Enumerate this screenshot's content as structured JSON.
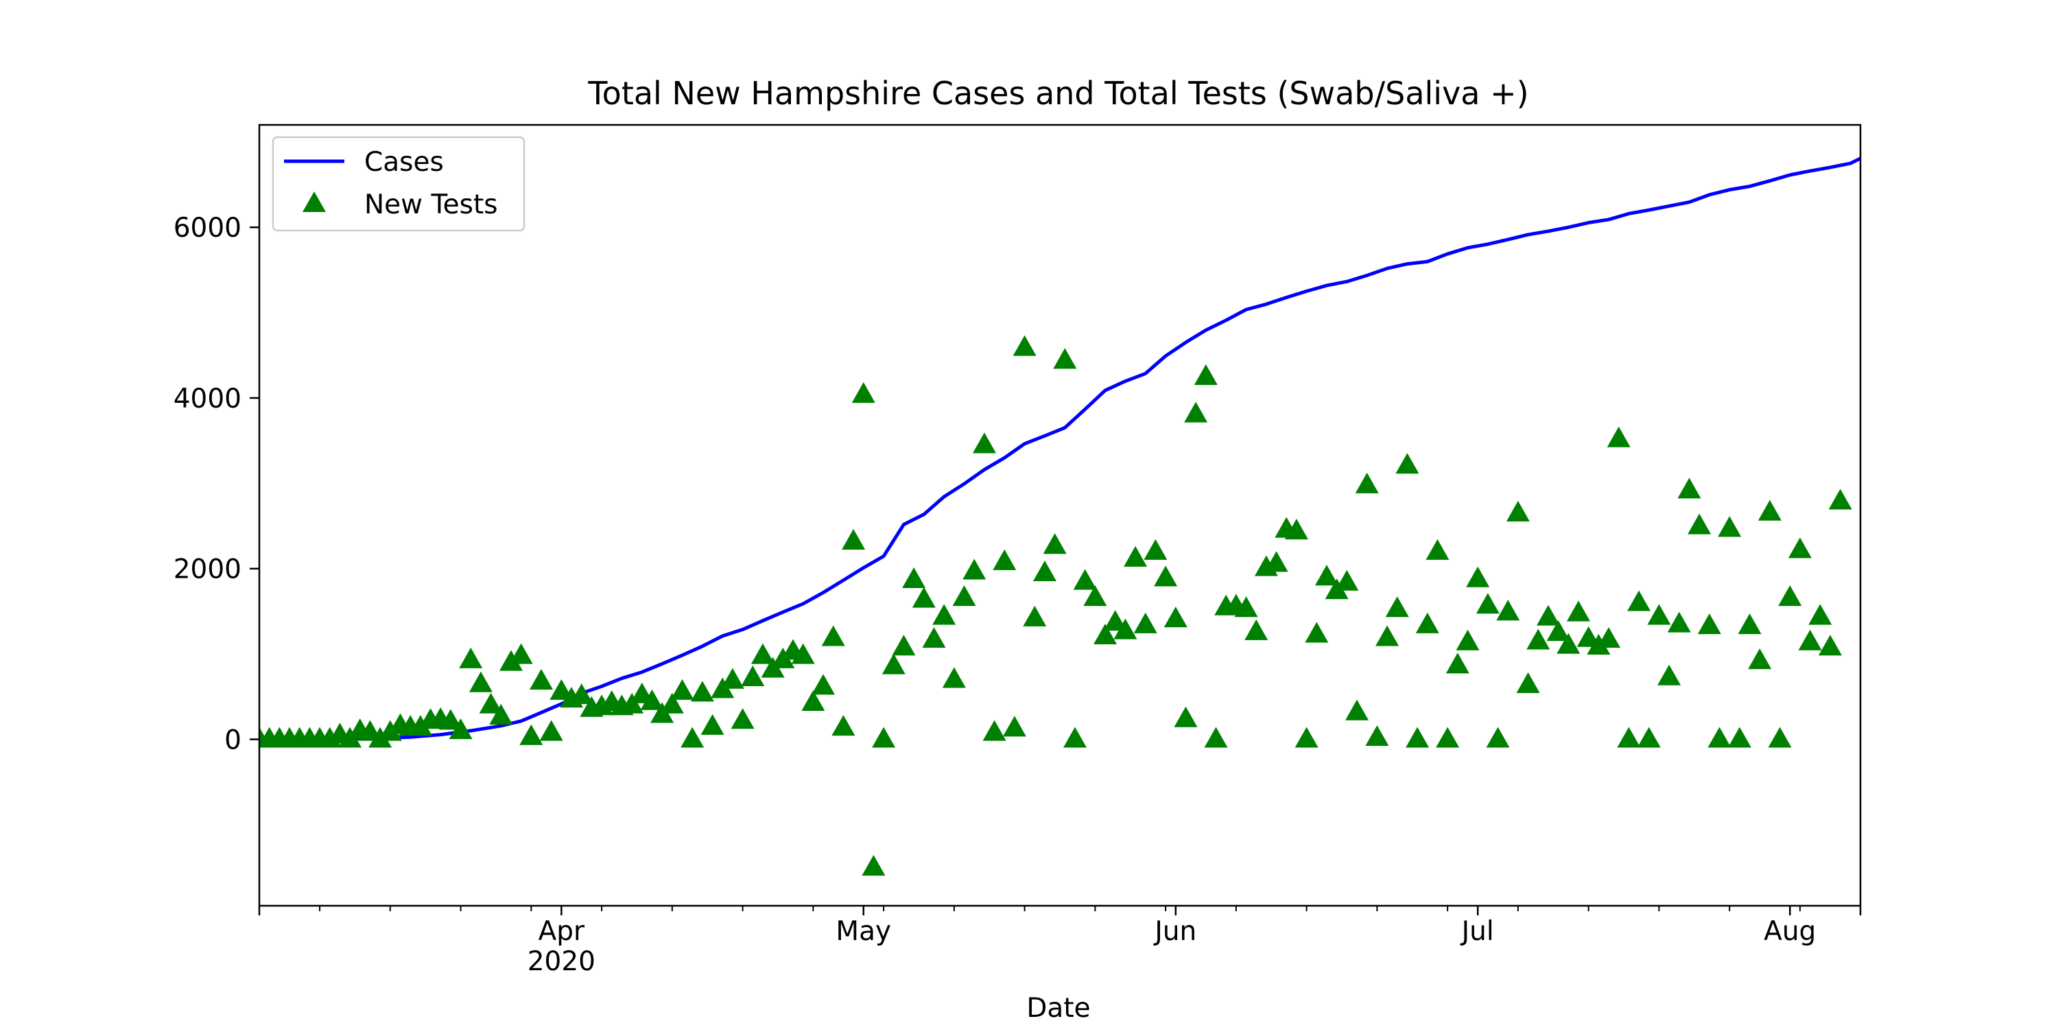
{
  "chart_data": {
    "type": "line",
    "title": "Total New Hampshire Cases and Total Tests (Swab/Saliva +)",
    "xlabel": "Date",
    "ylabel": "",
    "x_axis": {
      "scale": "date",
      "range": [
        "2020-03-02",
        "2020-08-08"
      ],
      "tick_labels": [
        {
          "date": "2020-04-01",
          "label": "Apr",
          "sublabel": "2020"
        },
        {
          "date": "2020-05-01",
          "label": "May",
          "sublabel": ""
        },
        {
          "date": "2020-06-01",
          "label": "Jun",
          "sublabel": ""
        },
        {
          "date": "2020-07-01",
          "label": "Jul",
          "sublabel": ""
        },
        {
          "date": "2020-08-01",
          "label": "Aug",
          "sublabel": ""
        }
      ],
      "minor_tick_dates": [
        "2020-03-08",
        "2020-03-15",
        "2020-03-22",
        "2020-03-29",
        "2020-04-05",
        "2020-04-12",
        "2020-04-19",
        "2020-04-26",
        "2020-05-03",
        "2020-05-10",
        "2020-05-17",
        "2020-05-24",
        "2020-05-31",
        "2020-06-07",
        "2020-06-14",
        "2020-06-21",
        "2020-06-28",
        "2020-07-05",
        "2020-07-12",
        "2020-07-19",
        "2020-07-26",
        "2020-08-02"
      ]
    },
    "y_axis": {
      "range": [
        -1950,
        7200
      ],
      "ticks": [
        0,
        2000,
        4000,
        6000
      ],
      "tick_labels": [
        "0",
        "2000",
        "4000",
        "6000"
      ]
    },
    "grid": false,
    "legend": {
      "position": "upper-left",
      "entries": [
        {
          "label": "Cases",
          "marker": "line",
          "color": "#0000ff"
        },
        {
          "label": "New Tests",
          "marker": "triangle",
          "color": "#008000"
        }
      ]
    },
    "series": [
      {
        "name": "Cases",
        "kind": "line",
        "color": "#0000ff",
        "points": [
          [
            "2020-03-02",
            2
          ],
          [
            "2020-03-05",
            3
          ],
          [
            "2020-03-08",
            6
          ],
          [
            "2020-03-11",
            7
          ],
          [
            "2020-03-14",
            13
          ],
          [
            "2020-03-17",
            26
          ],
          [
            "2020-03-20",
            55
          ],
          [
            "2020-03-23",
            101
          ],
          [
            "2020-03-26",
            158
          ],
          [
            "2020-03-28",
            214
          ],
          [
            "2020-03-30",
            314
          ],
          [
            "2020-04-01",
            415
          ],
          [
            "2020-04-03",
            540
          ],
          [
            "2020-04-05",
            621
          ],
          [
            "2020-04-07",
            715
          ],
          [
            "2020-04-09",
            788
          ],
          [
            "2020-04-11",
            885
          ],
          [
            "2020-04-13",
            985
          ],
          [
            "2020-04-15",
            1091
          ],
          [
            "2020-04-17",
            1211
          ],
          [
            "2020-04-19",
            1287
          ],
          [
            "2020-04-21",
            1390
          ],
          [
            "2020-04-23",
            1491
          ],
          [
            "2020-04-25",
            1588
          ],
          [
            "2020-04-27",
            1720
          ],
          [
            "2020-04-29",
            1864
          ],
          [
            "2020-05-01",
            2010
          ],
          [
            "2020-05-03",
            2146
          ],
          [
            "2020-05-05",
            2518
          ],
          [
            "2020-05-07",
            2636
          ],
          [
            "2020-05-09",
            2843
          ],
          [
            "2020-05-11",
            2994
          ],
          [
            "2020-05-13",
            3160
          ],
          [
            "2020-05-15",
            3299
          ],
          [
            "2020-05-17",
            3464
          ],
          [
            "2020-05-19",
            3556
          ],
          [
            "2020-05-21",
            3652
          ],
          [
            "2020-05-23",
            3868
          ],
          [
            "2020-05-25",
            4089
          ],
          [
            "2020-05-27",
            4197
          ],
          [
            "2020-05-29",
            4286
          ],
          [
            "2020-05-31",
            4492
          ],
          [
            "2020-06-02",
            4651
          ],
          [
            "2020-06-04",
            4795
          ],
          [
            "2020-06-06",
            4910
          ],
          [
            "2020-06-08",
            5036
          ],
          [
            "2020-06-10",
            5099
          ],
          [
            "2020-06-12",
            5178
          ],
          [
            "2020-06-14",
            5251
          ],
          [
            "2020-06-16",
            5318
          ],
          [
            "2020-06-18",
            5364
          ],
          [
            "2020-06-20",
            5436
          ],
          [
            "2020-06-22",
            5518
          ],
          [
            "2020-06-24",
            5571
          ],
          [
            "2020-06-26",
            5598
          ],
          [
            "2020-06-28",
            5688
          ],
          [
            "2020-06-30",
            5760
          ],
          [
            "2020-07-02",
            5802
          ],
          [
            "2020-07-04",
            5857
          ],
          [
            "2020-07-06",
            5914
          ],
          [
            "2020-07-08",
            5954
          ],
          [
            "2020-07-10",
            6000
          ],
          [
            "2020-07-12",
            6054
          ],
          [
            "2020-07-14",
            6091
          ],
          [
            "2020-07-16",
            6160
          ],
          [
            "2020-07-18",
            6202
          ],
          [
            "2020-07-20",
            6249
          ],
          [
            "2020-07-22",
            6295
          ],
          [
            "2020-07-24",
            6381
          ],
          [
            "2020-07-26",
            6440
          ],
          [
            "2020-07-28",
            6480
          ],
          [
            "2020-07-30",
            6544
          ],
          [
            "2020-08-01",
            6613
          ],
          [
            "2020-08-03",
            6660
          ],
          [
            "2020-08-05",
            6702
          ],
          [
            "2020-08-07",
            6749
          ],
          [
            "2020-08-08",
            6807
          ]
        ]
      },
      {
        "name": "New Tests",
        "kind": "scatter",
        "marker": "triangle",
        "color": "#008000",
        "points": [
          [
            "2020-03-02",
            0
          ],
          [
            "2020-03-03",
            0
          ],
          [
            "2020-03-04",
            0
          ],
          [
            "2020-03-05",
            0
          ],
          [
            "2020-03-06",
            0
          ],
          [
            "2020-03-07",
            0
          ],
          [
            "2020-03-08",
            0
          ],
          [
            "2020-03-09",
            0
          ],
          [
            "2020-03-10",
            50
          ],
          [
            "2020-03-11",
            0
          ],
          [
            "2020-03-12",
            100
          ],
          [
            "2020-03-13",
            80
          ],
          [
            "2020-03-14",
            0
          ],
          [
            "2020-03-15",
            80
          ],
          [
            "2020-03-16",
            160
          ],
          [
            "2020-03-17",
            140
          ],
          [
            "2020-03-18",
            140
          ],
          [
            "2020-03-19",
            220
          ],
          [
            "2020-03-20",
            230
          ],
          [
            "2020-03-21",
            210
          ],
          [
            "2020-03-22",
            100
          ],
          [
            "2020-03-23",
            930
          ],
          [
            "2020-03-24",
            650
          ],
          [
            "2020-03-25",
            400
          ],
          [
            "2020-03-26",
            270
          ],
          [
            "2020-03-27",
            900
          ],
          [
            "2020-03-28",
            980
          ],
          [
            "2020-03-29",
            30
          ],
          [
            "2020-03-30",
            680
          ],
          [
            "2020-03-31",
            80
          ],
          [
            "2020-04-01",
            560
          ],
          [
            "2020-04-02",
            470
          ],
          [
            "2020-04-03",
            510
          ],
          [
            "2020-04-04",
            360
          ],
          [
            "2020-04-05",
            380
          ],
          [
            "2020-04-06",
            430
          ],
          [
            "2020-04-07",
            380
          ],
          [
            "2020-04-08",
            400
          ],
          [
            "2020-04-09",
            520
          ],
          [
            "2020-04-10",
            440
          ],
          [
            "2020-04-11",
            290
          ],
          [
            "2020-04-12",
            400
          ],
          [
            "2020-04-13",
            560
          ],
          [
            "2020-04-14",
            0
          ],
          [
            "2020-04-15",
            540
          ],
          [
            "2020-04-16",
            150
          ],
          [
            "2020-04-17",
            580
          ],
          [
            "2020-04-18",
            690
          ],
          [
            "2020-04-19",
            220
          ],
          [
            "2020-04-20",
            720
          ],
          [
            "2020-04-21",
            980
          ],
          [
            "2020-04-22",
            820
          ],
          [
            "2020-04-23",
            930
          ],
          [
            "2020-04-24",
            1030
          ],
          [
            "2020-04-25",
            980
          ],
          [
            "2020-04-26",
            430
          ],
          [
            "2020-04-27",
            620
          ],
          [
            "2020-04-28",
            1190
          ],
          [
            "2020-04-29",
            140
          ],
          [
            "2020-04-30",
            2320
          ],
          [
            "2020-05-01",
            4040
          ],
          [
            "2020-05-02",
            -1500
          ],
          [
            "2020-05-03",
            0
          ],
          [
            "2020-05-04",
            860
          ],
          [
            "2020-05-05",
            1080
          ],
          [
            "2020-05-06",
            1870
          ],
          [
            "2020-05-07",
            1640
          ],
          [
            "2020-05-08",
            1170
          ],
          [
            "2020-05-09",
            1440
          ],
          [
            "2020-05-10",
            700
          ],
          [
            "2020-05-11",
            1660
          ],
          [
            "2020-05-12",
            1970
          ],
          [
            "2020-05-13",
            3450
          ],
          [
            "2020-05-14",
            80
          ],
          [
            "2020-05-15",
            2080
          ],
          [
            "2020-05-16",
            130
          ],
          [
            "2020-05-17",
            4590
          ],
          [
            "2020-05-18",
            1420
          ],
          [
            "2020-05-19",
            1950
          ],
          [
            "2020-05-20",
            2270
          ],
          [
            "2020-05-21",
            4440
          ],
          [
            "2020-05-22",
            0
          ],
          [
            "2020-05-23",
            1850
          ],
          [
            "2020-05-24",
            1660
          ],
          [
            "2020-05-25",
            1210
          ],
          [
            "2020-05-26",
            1370
          ],
          [
            "2020-05-27",
            1270
          ],
          [
            "2020-05-28",
            2120
          ],
          [
            "2020-05-29",
            1340
          ],
          [
            "2020-05-30",
            2200
          ],
          [
            "2020-05-31",
            1890
          ],
          [
            "2020-06-01",
            1410
          ],
          [
            "2020-06-02",
            240
          ],
          [
            "2020-06-03",
            3810
          ],
          [
            "2020-06-04",
            4250
          ],
          [
            "2020-06-05",
            0
          ],
          [
            "2020-06-06",
            1550
          ],
          [
            "2020-06-07",
            1560
          ],
          [
            "2020-06-08",
            1530
          ],
          [
            "2020-06-09",
            1260
          ],
          [
            "2020-06-10",
            2010
          ],
          [
            "2020-06-11",
            2060
          ],
          [
            "2020-06-12",
            2460
          ],
          [
            "2020-06-13",
            2440
          ],
          [
            "2020-06-14",
            0
          ],
          [
            "2020-06-15",
            1230
          ],
          [
            "2020-06-16",
            1900
          ],
          [
            "2020-06-17",
            1740
          ],
          [
            "2020-06-18",
            1840
          ],
          [
            "2020-06-19",
            320
          ],
          [
            "2020-06-20",
            2980
          ],
          [
            "2020-06-21",
            20
          ],
          [
            "2020-06-22",
            1190
          ],
          [
            "2020-06-23",
            1530
          ],
          [
            "2020-06-24",
            3210
          ],
          [
            "2020-06-25",
            0
          ],
          [
            "2020-06-26",
            1340
          ],
          [
            "2020-06-27",
            2200
          ],
          [
            "2020-06-28",
            0
          ],
          [
            "2020-06-29",
            870
          ],
          [
            "2020-06-30",
            1140
          ],
          [
            "2020-07-01",
            1880
          ],
          [
            "2020-07-02",
            1570
          ],
          [
            "2020-07-03",
            0
          ],
          [
            "2020-07-04",
            1490
          ],
          [
            "2020-07-05",
            2650
          ],
          [
            "2020-07-06",
            640
          ],
          [
            "2020-07-07",
            1150
          ],
          [
            "2020-07-08",
            1430
          ],
          [
            "2020-07-09",
            1250
          ],
          [
            "2020-07-10",
            1100
          ],
          [
            "2020-07-11",
            1480
          ],
          [
            "2020-07-12",
            1180
          ],
          [
            "2020-07-13",
            1090
          ],
          [
            "2020-07-14",
            1170
          ],
          [
            "2020-07-15",
            3520
          ],
          [
            "2020-07-16",
            0
          ],
          [
            "2020-07-17",
            1600
          ],
          [
            "2020-07-18",
            0
          ],
          [
            "2020-07-19",
            1440
          ],
          [
            "2020-07-20",
            730
          ],
          [
            "2020-07-21",
            1350
          ],
          [
            "2020-07-22",
            2920
          ],
          [
            "2020-07-23",
            2500
          ],
          [
            "2020-07-24",
            1330
          ],
          [
            "2020-07-25",
            0
          ],
          [
            "2020-07-26",
            2470
          ],
          [
            "2020-07-27",
            0
          ],
          [
            "2020-07-28",
            1330
          ],
          [
            "2020-07-29",
            920
          ],
          [
            "2020-07-30",
            2660
          ],
          [
            "2020-07-31",
            0
          ],
          [
            "2020-08-01",
            1660
          ],
          [
            "2020-08-02",
            2220
          ],
          [
            "2020-08-03",
            1140
          ],
          [
            "2020-08-04",
            1440
          ],
          [
            "2020-08-05",
            1080
          ],
          [
            "2020-08-06",
            2790
          ]
        ]
      }
    ]
  }
}
